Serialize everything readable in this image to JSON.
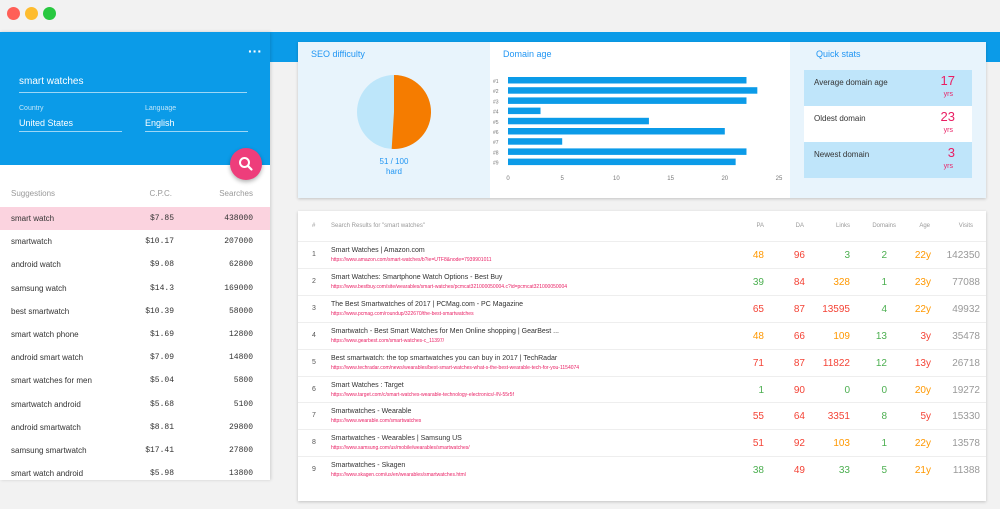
{
  "colors": {
    "close": "#ff5f57",
    "minimize": "#febc2e",
    "zoom": "#28c840",
    "accent": "#0b9be8",
    "pink": "#e91e63"
  },
  "sidebar": {
    "menu_icon": "more-dots-icon",
    "keyword": "smart watches",
    "country_label": "Country",
    "country_value": "United States",
    "language_label": "Language",
    "language_value": "English",
    "fab_icon": "search-icon",
    "headers": {
      "suggestions": "Suggestions",
      "cpc": "C.P.C.",
      "searches": "Searches"
    },
    "rows": [
      {
        "kw": "smart watch",
        "cpc": "$7.85",
        "searches": "438000"
      },
      {
        "kw": "smartwatch",
        "cpc": "$10.17",
        "searches": "207000"
      },
      {
        "kw": "android watch",
        "cpc": "$9.08",
        "searches": "62800"
      },
      {
        "kw": "samsung watch",
        "cpc": "$14.3",
        "searches": "169000"
      },
      {
        "kw": "best smartwatch",
        "cpc": "$10.39",
        "searches": "58000"
      },
      {
        "kw": "smart watch phone",
        "cpc": "$1.69",
        "searches": "12800"
      },
      {
        "kw": "android smart watch",
        "cpc": "$7.09",
        "searches": "14800"
      },
      {
        "kw": "smart watches for men",
        "cpc": "$5.04",
        "searches": "5800"
      },
      {
        "kw": "smartwatch android",
        "cpc": "$5.68",
        "searches": "5100"
      },
      {
        "kw": "android smartwatch",
        "cpc": "$8.81",
        "searches": "29800"
      },
      {
        "kw": "samsung smartwatch",
        "cpc": "$17.41",
        "searches": "27800"
      },
      {
        "kw": "smart watch android",
        "cpc": "$5.98",
        "searches": "13800"
      }
    ]
  },
  "seo": {
    "title": "SEO difficulty",
    "score": "51 / 100",
    "label": "hard",
    "value": 51,
    "colors": {
      "filled": "#f57c00",
      "empty": "#bde6fa"
    }
  },
  "domain_age": {
    "title": "Domain age"
  },
  "chart_data": {
    "type": "bar",
    "orientation": "horizontal",
    "categories": [
      "#1",
      "#2",
      "#3",
      "#4",
      "#5",
      "#6",
      "#7",
      "#8",
      "#9"
    ],
    "values": [
      22,
      23,
      22,
      3,
      13,
      20,
      5,
      22,
      21
    ],
    "xlim": [
      0,
      25
    ],
    "xticks": [
      0,
      5,
      10,
      15,
      20,
      25
    ],
    "color": "#0b9be8"
  },
  "quick_stats": {
    "title": "Quick stats",
    "items": [
      {
        "label": "Average domain age",
        "value": "17",
        "unit": "yrs"
      },
      {
        "label": "Oldest domain",
        "value": "23",
        "unit": "yrs"
      },
      {
        "label": "Newest domain",
        "value": "3",
        "unit": "yrs"
      }
    ]
  },
  "results": {
    "headers": {
      "num": "#",
      "results": "Search Results for \"smart watches\"",
      "pa": "PA",
      "da": "DA",
      "links": "Links",
      "domains": "Domains",
      "age": "Age",
      "visits": "Visits"
    },
    "rows": [
      {
        "num": "1",
        "title": "Smart Watches | Amazon.com",
        "url": "https://www.amazon.com/smart-watches/b?ie=UTF8&node=7939901011",
        "pa": "48",
        "da": "96",
        "links": "3",
        "domains": "2",
        "age": "22y",
        "visits": "142350",
        "pa_c": "orange",
        "da_c": "red",
        "links_c": "green",
        "domains_c": "green",
        "age_c": "orange"
      },
      {
        "num": "2",
        "title": "Smart Watches: Smartphone Watch Options - Best Buy",
        "url": "https://www.bestbuy.com/site/wearables/smart-watches/pcmcat321000050004.c?id=pcmcat321000050004",
        "pa": "39",
        "da": "84",
        "links": "328",
        "domains": "1",
        "age": "23y",
        "visits": "77088",
        "pa_c": "green",
        "da_c": "red",
        "links_c": "orange",
        "domains_c": "green",
        "age_c": "orange"
      },
      {
        "num": "3",
        "title": "The Best Smartwatches of 2017 | PCMag.com - PC Magazine",
        "url": "https://www.pcmag.com/roundup/322670/the-best-smartwatches",
        "pa": "65",
        "da": "87",
        "links": "13595",
        "domains": "4",
        "age": "22y",
        "visits": "49932",
        "pa_c": "red",
        "da_c": "red",
        "links_c": "red",
        "domains_c": "green",
        "age_c": "orange"
      },
      {
        "num": "4",
        "title": "Smartwatch - Best Smart Watches for Men Online shopping | GearBest ...",
        "url": "https://www.gearbest.com/smart-watches-c_11397/",
        "pa": "48",
        "da": "66",
        "links": "109",
        "domains": "13",
        "age": "3y",
        "visits": "35478",
        "pa_c": "orange",
        "da_c": "red",
        "links_c": "orange",
        "domains_c": "green",
        "age_c": "red"
      },
      {
        "num": "5",
        "title": "Best smartwatch: the top smartwatches you can buy in 2017 | TechRadar",
        "url": "https://www.techradar.com/news/wearables/best-smart-watches-what-s-the-best-wearable-tech-for-you-1154074",
        "pa": "71",
        "da": "87",
        "links": "11822",
        "domains": "12",
        "age": "13y",
        "visits": "26718",
        "pa_c": "red",
        "da_c": "red",
        "links_c": "red",
        "domains_c": "green",
        "age_c": "red"
      },
      {
        "num": "6",
        "title": "Smart Watches : Target",
        "url": "https://www.target.com/c/smart-watches-wearable-technology-electronics/-/N-55r5f",
        "pa": "1",
        "da": "90",
        "links": "0",
        "domains": "0",
        "age": "20y",
        "visits": "19272",
        "pa_c": "green",
        "da_c": "red",
        "links_c": "green",
        "domains_c": "green",
        "age_c": "orange"
      },
      {
        "num": "7",
        "title": "Smartwatches - Wearable",
        "url": "https://www.wearable.com/smartwatches",
        "pa": "55",
        "da": "64",
        "links": "3351",
        "domains": "8",
        "age": "5y",
        "visits": "15330",
        "pa_c": "red",
        "da_c": "red",
        "links_c": "red",
        "domains_c": "green",
        "age_c": "red"
      },
      {
        "num": "8",
        "title": "Smartwatches - Wearables | Samsung US",
        "url": "https://www.samsung.com/us/mobile/wearables/smartwatches/",
        "pa": "51",
        "da": "92",
        "links": "103",
        "domains": "1",
        "age": "22y",
        "visits": "13578",
        "pa_c": "red",
        "da_c": "red",
        "links_c": "orange",
        "domains_c": "green",
        "age_c": "orange"
      },
      {
        "num": "9",
        "title": "Smartwatches - Skagen",
        "url": "https://www.skagen.com/us/en/wearables/smartwatches.html",
        "pa": "38",
        "da": "49",
        "links": "33",
        "domains": "5",
        "age": "21y",
        "visits": "11388",
        "pa_c": "green",
        "da_c": "red",
        "links_c": "green",
        "domains_c": "green",
        "age_c": "orange"
      }
    ]
  }
}
